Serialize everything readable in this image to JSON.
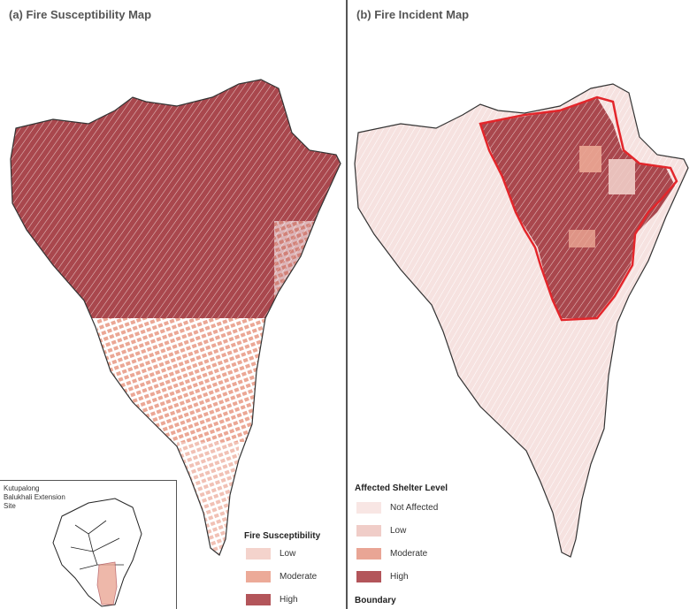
{
  "panel_a": {
    "title": "(a) Fire Susceptibility Map",
    "legend": {
      "title": "Fire Susceptibility",
      "items": [
        {
          "label": "Low",
          "color": "#f4d3cc"
        },
        {
          "label": "Moderate",
          "color": "#ecaa98"
        },
        {
          "label": "High",
          "color": "#b3555a"
        }
      ]
    },
    "inset": {
      "label": "Kutupalong Balukhali Extension Site"
    }
  },
  "panel_b": {
    "title": "(b) Fire Incident Map",
    "legend": {
      "title": "Affected Shelter Level",
      "items": [
        {
          "label": "Not Affected",
          "color": "#f8e6e4"
        },
        {
          "label": "Low",
          "color": "#f0cdc8"
        },
        {
          "label": "Moderate",
          "color": "#e9a595"
        },
        {
          "label": "High",
          "color": "#b3555a"
        }
      ],
      "boundary_label": "Boundary",
      "boundary_color": "#e3262b"
    }
  },
  "colors": {
    "high": "#a9474d",
    "moderate": "#eba795",
    "low_fill": "#f6ddd8",
    "not_affected": "#f6e2e0",
    "outline": "#333333"
  }
}
